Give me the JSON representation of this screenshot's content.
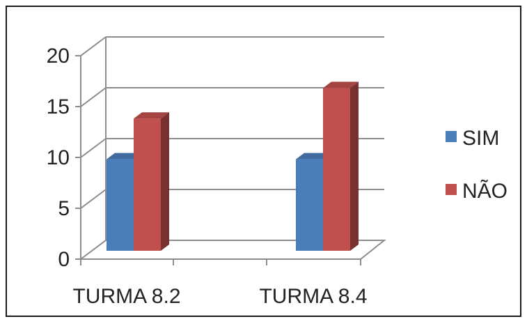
{
  "chart_data": {
    "type": "bar",
    "categories": [
      "TURMA 8.2",
      "TURMA 8.4"
    ],
    "series": [
      {
        "name": "SIM",
        "values": [
          9,
          9
        ],
        "color": "#4a7ebb"
      },
      {
        "name": "NÃO",
        "values": [
          13,
          16
        ],
        "color": "#c0504d"
      }
    ],
    "y_ticks": [
      "0",
      "5",
      "10",
      "15",
      "20"
    ],
    "ylim": [
      0,
      20
    ],
    "grid": true,
    "legend_position": "right",
    "style": "3d-clustered-column",
    "title": "",
    "xlabel": "",
    "ylabel": ""
  }
}
